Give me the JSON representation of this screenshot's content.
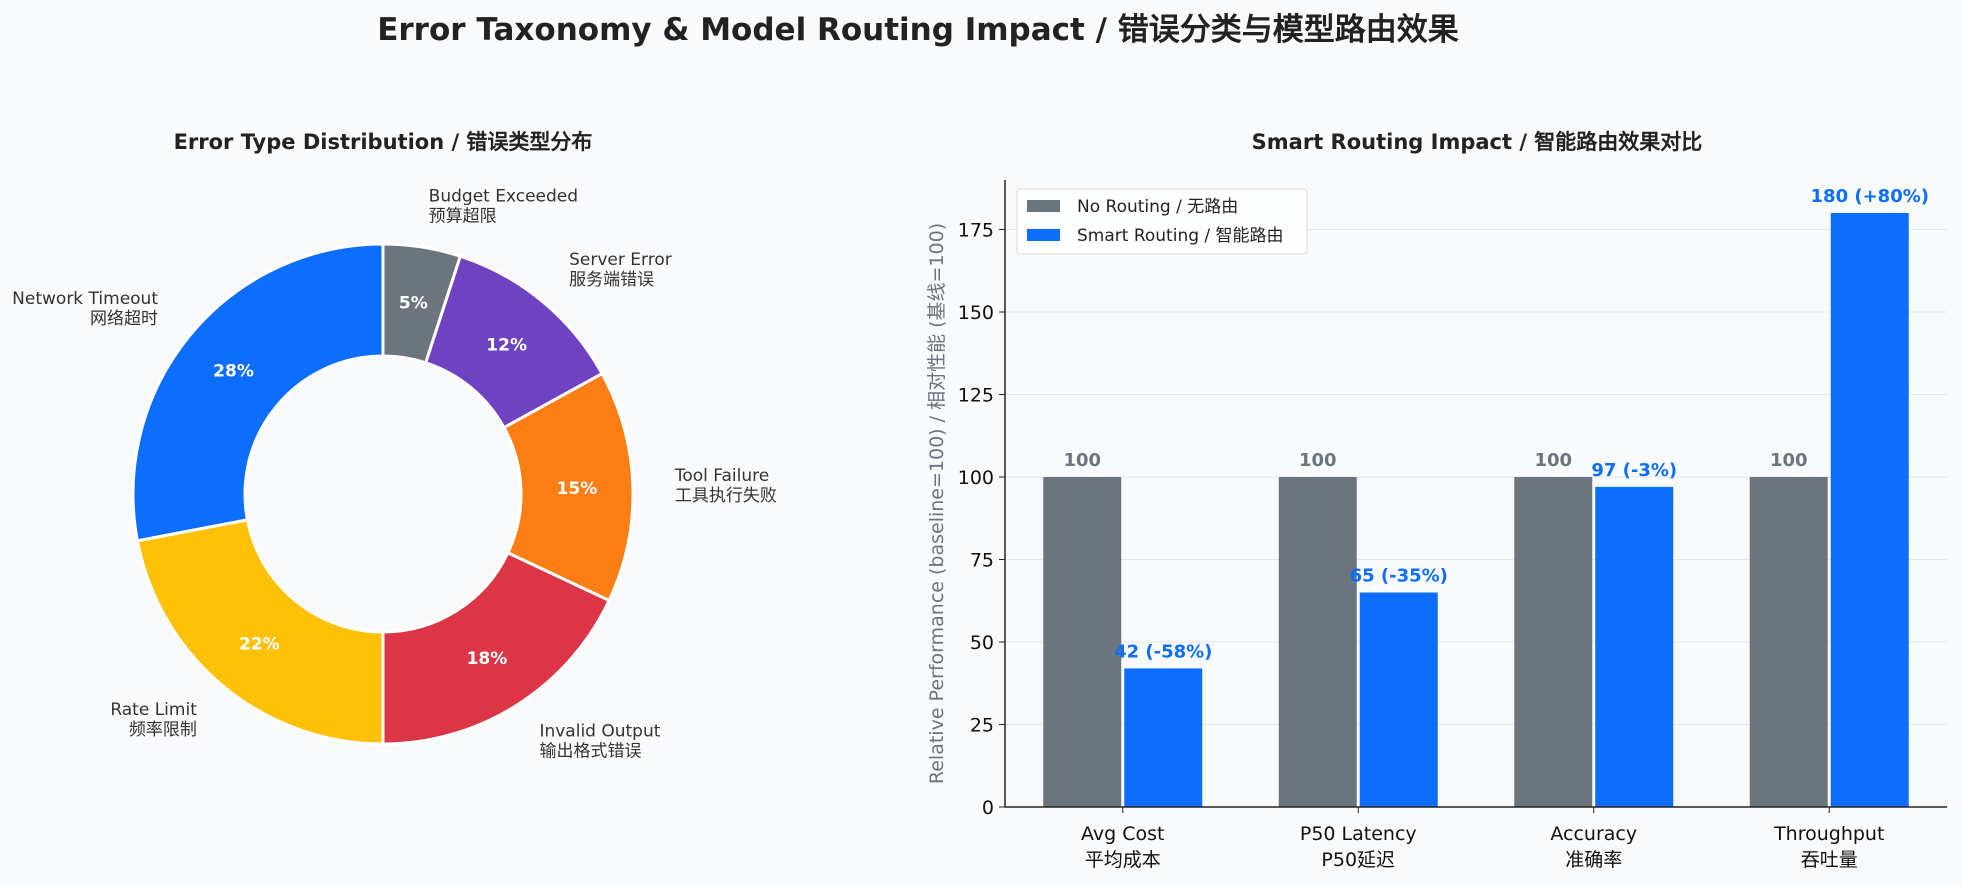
{
  "title": "Error Taxonomy & Model Routing Impact / 错误分类与模型路由效果",
  "colors": {
    "background": "#f8fafc",
    "blue": "#0d6efd",
    "gray": "#6c757d",
    "purple": "#6f42c1",
    "orange": "#fd7e14",
    "red": "#dc3545",
    "yellow": "#ffc107"
  },
  "chart_data": [
    {
      "type": "pie",
      "donut": true,
      "title": "Error Type Distribution / 错误类型分布",
      "slices": [
        {
          "label_en": "Network Timeout",
          "label_zh": "网络超时",
          "value": 28,
          "pct_label": "28%",
          "color": "#0d6efd"
        },
        {
          "label_en": "Rate Limit",
          "label_zh": "频率限制",
          "value": 22,
          "pct_label": "22%",
          "color": "#ffc107"
        },
        {
          "label_en": "Invalid Output",
          "label_zh": "输出格式错误",
          "value": 18,
          "pct_label": "18%",
          "color": "#dc3545"
        },
        {
          "label_en": "Tool Failure",
          "label_zh": "工具执行失败",
          "value": 15,
          "pct_label": "15%",
          "color": "#fd7e14"
        },
        {
          "label_en": "Server Error",
          "label_zh": "服务端错误",
          "value": 12,
          "pct_label": "12%",
          "color": "#6f42c1"
        },
        {
          "label_en": "Budget Exceeded",
          "label_zh": "预算超限",
          "value": 5,
          "pct_label": "5%",
          "color": "#6c757d"
        }
      ]
    },
    {
      "type": "bar",
      "title": "Smart Routing Impact / 智能路由效果对比",
      "ylabel": "Relative Performance (baseline=100) / 相对性能 (基线=100)",
      "ylim": [
        0,
        190
      ],
      "yticks": [
        0,
        25,
        50,
        75,
        100,
        125,
        150,
        175
      ],
      "grid": true,
      "legend_position": "top-left",
      "categories": [
        {
          "en": "Avg Cost",
          "zh": "平均成本"
        },
        {
          "en": "P50 Latency",
          "zh": "P50延迟"
        },
        {
          "en": "Accuracy",
          "zh": "准确率"
        },
        {
          "en": "Throughput",
          "zh": "吞吐量"
        }
      ],
      "series": [
        {
          "name": "No Routing / 无路由",
          "color": "#6c757d",
          "values": [
            100,
            100,
            100,
            100
          ],
          "labels": [
            "100",
            "100",
            "100",
            "100"
          ]
        },
        {
          "name": "Smart Routing / 智能路由",
          "color": "#0d6efd",
          "values": [
            42,
            65,
            97,
            180
          ],
          "labels": [
            "42 (-58%)",
            "65 (-35%)",
            "97 (-3%)",
            "180 (+80%)"
          ]
        }
      ]
    }
  ]
}
